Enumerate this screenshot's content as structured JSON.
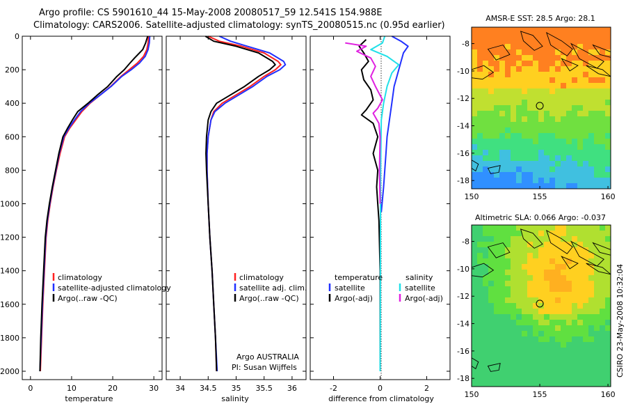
{
  "header": {
    "line1": "Argo profile: CS 5901610_44 15-May-2008 20080517_59 12.541S 154.988E",
    "line2": "Climatology: CARS2006. Satellite-adjusted climatology: synTS_20080515.nc (0.95d earlier)"
  },
  "colors": {
    "climatology": "#ff2020",
    "satellite": "#2030ff",
    "argo": "#000000",
    "salinity_satellite": "#20e0e8",
    "salinity_argo": "#e020e0"
  },
  "chart_data": [
    {
      "type": "line",
      "xlabel": "temperature",
      "ylim": [
        2050,
        0
      ],
      "xlim": [
        -2,
        32
      ],
      "xticks": [
        0,
        10,
        20,
        30
      ],
      "yticks": [
        0,
        200,
        400,
        600,
        800,
        1000,
        1200,
        1400,
        1600,
        1800,
        2000
      ],
      "legend": {
        "placement": "lower-right",
        "entries": [
          "climatology",
          "satellite-adjusted climatology",
          "Argo(..raw -QC)"
        ]
      },
      "series": [
        {
          "key": "climatology",
          "color": "#ff2020",
          "points": [
            [
              28.7,
              0
            ],
            [
              28.6,
              40
            ],
            [
              28.3,
              80
            ],
            [
              27.5,
              120
            ],
            [
              26,
              160
            ],
            [
              24,
              200
            ],
            [
              22,
              240
            ],
            [
              19.5,
              300
            ],
            [
              17,
              350
            ],
            [
              14.5,
              400
            ],
            [
              12.5,
              450
            ],
            [
              11,
              500
            ],
            [
              9.5,
              550
            ],
            [
              8.3,
              600
            ],
            [
              7.2,
              700
            ],
            [
              6.3,
              800
            ],
            [
              5.5,
              900
            ],
            [
              4.8,
              1000
            ],
            [
              4.2,
              1100
            ],
            [
              3.8,
              1200
            ],
            [
              3.4,
              1400
            ],
            [
              3,
              1600
            ],
            [
              2.7,
              1800
            ],
            [
              2.4,
              2000
            ]
          ]
        },
        {
          "key": "satellite",
          "color": "#2030ff",
          "points": [
            [
              29,
              0
            ],
            [
              28.9,
              40
            ],
            [
              28.6,
              80
            ],
            [
              27.9,
              120
            ],
            [
              26.5,
              160
            ],
            [
              24.5,
              200
            ],
            [
              22.2,
              240
            ],
            [
              19.6,
              300
            ],
            [
              17,
              350
            ],
            [
              14.3,
              400
            ],
            [
              12.2,
              450
            ],
            [
              10.7,
              500
            ],
            [
              9.3,
              550
            ],
            [
              8.1,
              600
            ],
            [
              7,
              700
            ],
            [
              6.2,
              800
            ],
            [
              5.4,
              900
            ],
            [
              4.7,
              1000
            ],
            [
              4.1,
              1100
            ],
            [
              3.7,
              1200
            ],
            [
              3.3,
              1400
            ],
            [
              2.9,
              1600
            ],
            [
              2.6,
              1800
            ],
            [
              2.3,
              2000
            ]
          ]
        },
        {
          "key": "argo",
          "color": "#000000",
          "points": [
            [
              28.5,
              0
            ],
            [
              28,
              40
            ],
            [
              27.3,
              80
            ],
            [
              26.5,
              100
            ],
            [
              25.3,
              130
            ],
            [
              24.2,
              160
            ],
            [
              22.8,
              200
            ],
            [
              21,
              240
            ],
            [
              18.8,
              300
            ],
            [
              16.3,
              350
            ],
            [
              14,
              400
            ],
            [
              11.5,
              450
            ],
            [
              10.2,
              500
            ],
            [
              9,
              550
            ],
            [
              7.9,
              600
            ],
            [
              6.9,
              700
            ],
            [
              6.1,
              800
            ],
            [
              5.3,
              900
            ],
            [
              4.6,
              1000
            ],
            [
              4,
              1100
            ],
            [
              3.6,
              1200
            ],
            [
              3.2,
              1400
            ],
            [
              2.8,
              1600
            ],
            [
              2.5,
              1800
            ],
            [
              2.3,
              2000
            ]
          ]
        }
      ]
    },
    {
      "type": "line",
      "xlabel": "salinity",
      "ylim": [
        2050,
        0
      ],
      "xlim": [
        33.75,
        36.25
      ],
      "xticks": [
        34,
        34.5,
        35,
        35.5,
        36
      ],
      "legend": {
        "placement": "lower-right",
        "entries": [
          "climatology",
          "satellite adj. clim.",
          "Argo(..raw -QC)"
        ]
      },
      "annotation": {
        "line1": "Argo AUSTRALIA",
        "line2": "PI: Susan Wijffels"
      },
      "series": [
        {
          "key": "climatology",
          "color": "#ff2020",
          "points": [
            [
              34.5,
              0
            ],
            [
              34.7,
              30
            ],
            [
              35.1,
              60
            ],
            [
              35.5,
              100
            ],
            [
              35.75,
              150
            ],
            [
              35.8,
              170
            ],
            [
              35.7,
              200
            ],
            [
              35.5,
              240
            ],
            [
              35.25,
              300
            ],
            [
              35,
              350
            ],
            [
              34.75,
              400
            ],
            [
              34.6,
              450
            ],
            [
              34.55,
              500
            ],
            [
              34.5,
              600
            ],
            [
              34.48,
              700
            ],
            [
              34.48,
              800
            ],
            [
              34.5,
              1000
            ],
            [
              34.53,
              1200
            ],
            [
              34.57,
              1400
            ],
            [
              34.6,
              1600
            ],
            [
              34.63,
              1800
            ],
            [
              34.65,
              2000
            ]
          ]
        },
        {
          "key": "satellite",
          "color": "#2030ff",
          "points": [
            [
              34.7,
              0
            ],
            [
              34.9,
              30
            ],
            [
              35.2,
              60
            ],
            [
              35.6,
              100
            ],
            [
              35.85,
              150
            ],
            [
              35.88,
              170
            ],
            [
              35.78,
              200
            ],
            [
              35.55,
              240
            ],
            [
              35.3,
              300
            ],
            [
              35.05,
              350
            ],
            [
              34.8,
              400
            ],
            [
              34.62,
              450
            ],
            [
              34.55,
              500
            ],
            [
              34.5,
              600
            ],
            [
              34.48,
              700
            ],
            [
              34.48,
              800
            ],
            [
              34.5,
              1000
            ],
            [
              34.53,
              1200
            ],
            [
              34.57,
              1400
            ],
            [
              34.6,
              1600
            ],
            [
              34.63,
              1800
            ],
            [
              34.66,
              2000
            ]
          ]
        },
        {
          "key": "argo",
          "color": "#000000",
          "points": [
            [
              34.45,
              0
            ],
            [
              34.6,
              30
            ],
            [
              35,
              60
            ],
            [
              35.4,
              100
            ],
            [
              35.65,
              150
            ],
            [
              35.7,
              170
            ],
            [
              35.6,
              200
            ],
            [
              35.4,
              240
            ],
            [
              35.15,
              300
            ],
            [
              34.9,
              350
            ],
            [
              34.65,
              400
            ],
            [
              34.55,
              450
            ],
            [
              34.5,
              500
            ],
            [
              34.47,
              600
            ],
            [
              34.46,
              700
            ],
            [
              34.47,
              800
            ],
            [
              34.5,
              1000
            ],
            [
              34.53,
              1200
            ],
            [
              34.57,
              1400
            ],
            [
              34.6,
              1600
            ],
            [
              34.63,
              1800
            ],
            [
              34.65,
              2000
            ]
          ]
        }
      ]
    },
    {
      "type": "line",
      "xlabel": "difference from climatology",
      "ylim": [
        2050,
        0
      ],
      "xlim": [
        -3,
        3
      ],
      "xticks": [
        -2,
        0,
        2
      ],
      "legend": {
        "placement": "lower-center",
        "temperature_header": "temperature",
        "salinity_header": "salinity",
        "entries": [
          "satellite",
          "Argo(-adj)",
          "satellite",
          "Argo(-adj)"
        ]
      },
      "series": [
        {
          "key": "temperature_satellite",
          "color": "#2030ff",
          "points": [
            [
              0.5,
              0
            ],
            [
              0.9,
              30
            ],
            [
              1.2,
              60
            ],
            [
              1.0,
              100
            ],
            [
              0.9,
              150
            ],
            [
              0.8,
              200
            ],
            [
              0.6,
              300
            ],
            [
              0.5,
              400
            ],
            [
              0.4,
              500
            ],
            [
              0.3,
              600
            ],
            [
              0.25,
              700
            ],
            [
              0.15,
              900
            ],
            [
              0.05,
              1050
            ]
          ]
        },
        {
          "key": "temperature_argo",
          "color": "#000000",
          "points": [
            [
              -0.6,
              20
            ],
            [
              -0.9,
              60
            ],
            [
              -0.7,
              100
            ],
            [
              -0.5,
              150
            ],
            [
              -0.8,
              200
            ],
            [
              -0.7,
              260
            ],
            [
              -0.4,
              320
            ],
            [
              -0.3,
              380
            ],
            [
              -0.6,
              440
            ],
            [
              -0.8,
              470
            ],
            [
              -0.3,
              520
            ],
            [
              -0.1,
              600
            ],
            [
              -0.3,
              700
            ],
            [
              -0.1,
              800
            ],
            [
              -0.15,
              900
            ],
            [
              -0.1,
              1000
            ],
            [
              -0.05,
              1100
            ],
            [
              0,
              1400
            ],
            [
              0,
              2000
            ]
          ]
        },
        {
          "key": "salinity_satellite",
          "color": "#20e0e8",
          "points": [
            [
              0.2,
              0
            ],
            [
              0.1,
              40
            ],
            [
              -0.4,
              80
            ],
            [
              0.3,
              120
            ],
            [
              0.8,
              170
            ],
            [
              0.5,
              220
            ],
            [
              0.3,
              300
            ],
            [
              0.15,
              400
            ],
            [
              0.05,
              500
            ],
            [
              0.02,
              800
            ],
            [
              0.01,
              1500
            ],
            [
              0,
              2000
            ]
          ]
        },
        {
          "key": "salinity_argo",
          "color": "#e020e0",
          "points": [
            [
              -1.5,
              40
            ],
            [
              -0.6,
              60
            ],
            [
              -1.0,
              90
            ],
            [
              -0.4,
              130
            ],
            [
              -0.2,
              180
            ],
            [
              -0.4,
              240
            ],
            [
              -0.2,
              300
            ],
            [
              0.1,
              380
            ],
            [
              -0.1,
              430
            ],
            [
              -0.3,
              460
            ],
            [
              -0.05,
              520
            ],
            [
              0,
              600
            ],
            [
              -0.03,
              800
            ],
            [
              0,
              1000
            ]
          ]
        }
      ]
    },
    {
      "type": "heatmap",
      "title": "AMSR-E SST: 28.5  Argo: 28.1",
      "xlim": [
        150,
        160.2
      ],
      "ylim": [
        -18.6,
        -6.8
      ],
      "xticks": [
        150,
        155,
        160
      ],
      "yticks": [
        -8,
        -10,
        -12,
        -14,
        -16,
        -18
      ],
      "marker": {
        "lon": 155,
        "lat": -12.54
      },
      "palette": [
        "#3090ff",
        "#40c0e0",
        "#40e080",
        "#70e040",
        "#c0e030",
        "#ffd020",
        "#ff8020"
      ]
    },
    {
      "type": "heatmap",
      "title": "Altimetric SLA: 0.066  Argo: -0.037",
      "xlim": [
        150,
        160.2
      ],
      "ylim": [
        -18.6,
        -6.8
      ],
      "xticks": [
        150,
        155,
        160
      ],
      "yticks": [
        -8,
        -10,
        -12,
        -14,
        -16,
        -18
      ],
      "marker": {
        "lon": 155,
        "lat": -12.54
      },
      "palette": [
        "#40d070",
        "#60e040",
        "#b0e030",
        "#ffd020",
        "#ffb020",
        "#ff8020"
      ]
    }
  ],
  "footer_stamp": "CSIRO 23-May-2008 10:32:04"
}
